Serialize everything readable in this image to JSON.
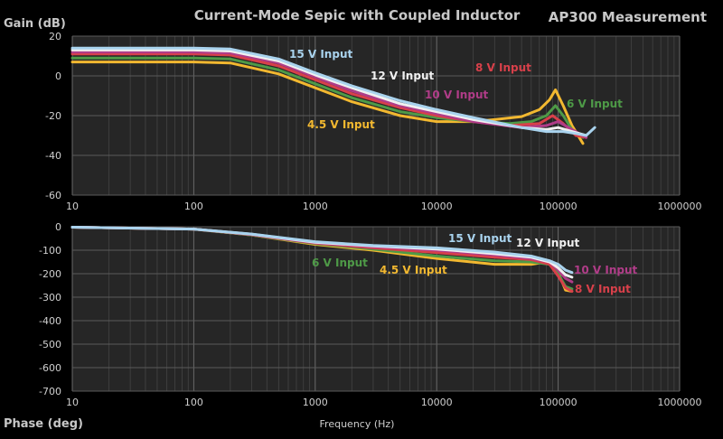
{
  "chart_data": [
    {
      "type": "line",
      "title": "Current-Mode Sepic with Coupled Inductor",
      "corner_label": "AP300 Measurement",
      "ylabel": "Gain (dB)",
      "xlabel": "",
      "xscale": "log",
      "xlim": [
        10,
        1000000
      ],
      "ylim": [
        -60,
        20
      ],
      "x_ticks": [
        "10",
        "100",
        "1000",
        "10000",
        "100000",
        "1000000"
      ],
      "y_ticks": [
        "20",
        "0",
        "-20",
        "-40",
        "-60"
      ],
      "grid": true,
      "series": [
        {
          "name": "4.5 V Input",
          "color": "#f2b830",
          "points": [
            [
              10,
              7
            ],
            [
              100,
              7
            ],
            [
              200,
              6.5
            ],
            [
              500,
              1
            ],
            [
              1000,
              -6
            ],
            [
              2000,
              -13
            ],
            [
              5000,
              -20
            ],
            [
              10000,
              -23
            ],
            [
              20000,
              -23
            ],
            [
              30000,
              -22
            ],
            [
              50000,
              -20.5
            ],
            [
              70000,
              -17
            ],
            [
              85000,
              -12
            ],
            [
              95000,
              -7
            ],
            [
              110000,
              -15
            ],
            [
              130000,
              -25
            ],
            [
              160000,
              -34
            ]
          ]
        },
        {
          "name": "6 V Input",
          "color": "#4e9a47",
          "points": [
            [
              10,
              9
            ],
            [
              100,
              9
            ],
            [
              200,
              8.5
            ],
            [
              500,
              3
            ],
            [
              1000,
              -4
            ],
            [
              2000,
              -11
            ],
            [
              5000,
              -18
            ],
            [
              10000,
              -21
            ],
            [
              20000,
              -23
            ],
            [
              40000,
              -24
            ],
            [
              60000,
              -23
            ],
            [
              80000,
              -20
            ],
            [
              95000,
              -15
            ],
            [
              110000,
              -20
            ],
            [
              130000,
              -27
            ],
            [
              160000,
              -31
            ]
          ]
        },
        {
          "name": "8 V Input",
          "color": "#d8404a",
          "points": [
            [
              10,
              11
            ],
            [
              100,
              11
            ],
            [
              200,
              10.5
            ],
            [
              500,
              5
            ],
            [
              1000,
              -2
            ],
            [
              2000,
              -9
            ],
            [
              5000,
              -16
            ],
            [
              10000,
              -20
            ],
            [
              20000,
              -23
            ],
            [
              40000,
              -25
            ],
            [
              70000,
              -24
            ],
            [
              90000,
              -20
            ],
            [
              110000,
              -24
            ],
            [
              140000,
              -30
            ],
            [
              170000,
              -31
            ]
          ]
        },
        {
          "name": "10 V Input",
          "color": "#b03c88",
          "points": [
            [
              10,
              12
            ],
            [
              100,
              12
            ],
            [
              200,
              11.5
            ],
            [
              500,
              6.5
            ],
            [
              1000,
              -0.5
            ],
            [
              2000,
              -7.5
            ],
            [
              5000,
              -15
            ],
            [
              10000,
              -19
            ],
            [
              20000,
              -23
            ],
            [
              50000,
              -26
            ],
            [
              80000,
              -25
            ],
            [
              100000,
              -23
            ],
            [
              130000,
              -27
            ],
            [
              170000,
              -31
            ]
          ]
        },
        {
          "name": "12 V Input",
          "color": "#f0f0f0",
          "points": [
            [
              10,
              13
            ],
            [
              100,
              13
            ],
            [
              200,
              12.5
            ],
            [
              500,
              7.5
            ],
            [
              1000,
              0.5
            ],
            [
              2000,
              -6
            ],
            [
              5000,
              -14
            ],
            [
              10000,
              -18
            ],
            [
              20000,
              -22
            ],
            [
              50000,
              -26
            ],
            [
              80000,
              -27
            ],
            [
              100000,
              -26
            ],
            [
              130000,
              -28
            ],
            [
              170000,
              -30
            ]
          ]
        },
        {
          "name": "15 V Input",
          "color": "#a9d3ee",
          "points": [
            [
              10,
              14
            ],
            [
              100,
              14
            ],
            [
              200,
              13.5
            ],
            [
              500,
              8.5
            ],
            [
              1000,
              1.5
            ],
            [
              2000,
              -5
            ],
            [
              5000,
              -12.5
            ],
            [
              10000,
              -17
            ],
            [
              20000,
              -21
            ],
            [
              50000,
              -26
            ],
            [
              80000,
              -28
            ],
            [
              110000,
              -28
            ],
            [
              140000,
              -29
            ],
            [
              170000,
              -30
            ],
            [
              200000,
              -26
            ]
          ]
        }
      ]
    },
    {
      "type": "line",
      "title": "",
      "ylabel": "Phase (deg)",
      "xlabel": "Frequency (Hz)",
      "xscale": "log",
      "xlim": [
        10,
        1000000
      ],
      "ylim": [
        -700,
        0
      ],
      "x_ticks": [
        "10",
        "100",
        "1000",
        "10000",
        "100000",
        "1000000"
      ],
      "y_ticks": [
        "0",
        "-100",
        "-200",
        "-300",
        "-400",
        "-500",
        "-600",
        "-700"
      ],
      "grid": true,
      "series": [
        {
          "name": "4.5 V Input",
          "color": "#f2b830",
          "points": [
            [
              10,
              -2
            ],
            [
              100,
              -10
            ],
            [
              300,
              -35
            ],
            [
              1000,
              -75
            ],
            [
              3000,
              -100
            ],
            [
              10000,
              -135
            ],
            [
              30000,
              -160
            ],
            [
              60000,
              -160
            ],
            [
              80000,
              -150
            ],
            [
              95000,
              -160
            ],
            [
              105000,
              -220
            ],
            [
              115000,
              -270
            ],
            [
              130000,
              -275
            ]
          ]
        },
        {
          "name": "6 V Input",
          "color": "#4e9a47",
          "points": [
            [
              10,
              -2
            ],
            [
              100,
              -10
            ],
            [
              300,
              -35
            ],
            [
              1000,
              -72
            ],
            [
              3000,
              -95
            ],
            [
              10000,
              -125
            ],
            [
              30000,
              -145
            ],
            [
              60000,
              -150
            ],
            [
              85000,
              -160
            ],
            [
              100000,
              -200
            ],
            [
              115000,
              -255
            ],
            [
              130000,
              -265
            ]
          ]
        },
        {
          "name": "8 V Input",
          "color": "#d8404a",
          "points": [
            [
              10,
              -2
            ],
            [
              100,
              -10
            ],
            [
              300,
              -34
            ],
            [
              1000,
              -70
            ],
            [
              3000,
              -90
            ],
            [
              10000,
              -110
            ],
            [
              30000,
              -130
            ],
            [
              60000,
              -140
            ],
            [
              85000,
              -160
            ],
            [
              100000,
              -210
            ],
            [
              115000,
              -260
            ],
            [
              130000,
              -275
            ]
          ]
        },
        {
          "name": "10 V Input",
          "color": "#b03c88",
          "points": [
            [
              10,
              -2
            ],
            [
              100,
              -10
            ],
            [
              300,
              -33
            ],
            [
              1000,
              -68
            ],
            [
              3000,
              -85
            ],
            [
              10000,
              -100
            ],
            [
              30000,
              -120
            ],
            [
              60000,
              -135
            ],
            [
              85000,
              -150
            ],
            [
              100000,
              -185
            ],
            [
              115000,
              -220
            ],
            [
              130000,
              -235
            ]
          ]
        },
        {
          "name": "12 V Input",
          "color": "#f0f0f0",
          "points": [
            [
              10,
              -2
            ],
            [
              100,
              -10
            ],
            [
              300,
              -32
            ],
            [
              1000,
              -66
            ],
            [
              3000,
              -82
            ],
            [
              10000,
              -95
            ],
            [
              30000,
              -115
            ],
            [
              60000,
              -130
            ],
            [
              85000,
              -150
            ],
            [
              100000,
              -175
            ],
            [
              115000,
              -205
            ],
            [
              130000,
              -215
            ]
          ]
        },
        {
          "name": "15 V Input",
          "color": "#a9d3ee",
          "points": [
            [
              10,
              -2
            ],
            [
              100,
              -10
            ],
            [
              300,
              -31
            ],
            [
              1000,
              -64
            ],
            [
              3000,
              -80
            ],
            [
              10000,
              -90
            ],
            [
              30000,
              -108
            ],
            [
              60000,
              -125
            ],
            [
              85000,
              -145
            ],
            [
              100000,
              -160
            ],
            [
              115000,
              -185
            ],
            [
              130000,
              -195
            ]
          ]
        }
      ]
    }
  ]
}
